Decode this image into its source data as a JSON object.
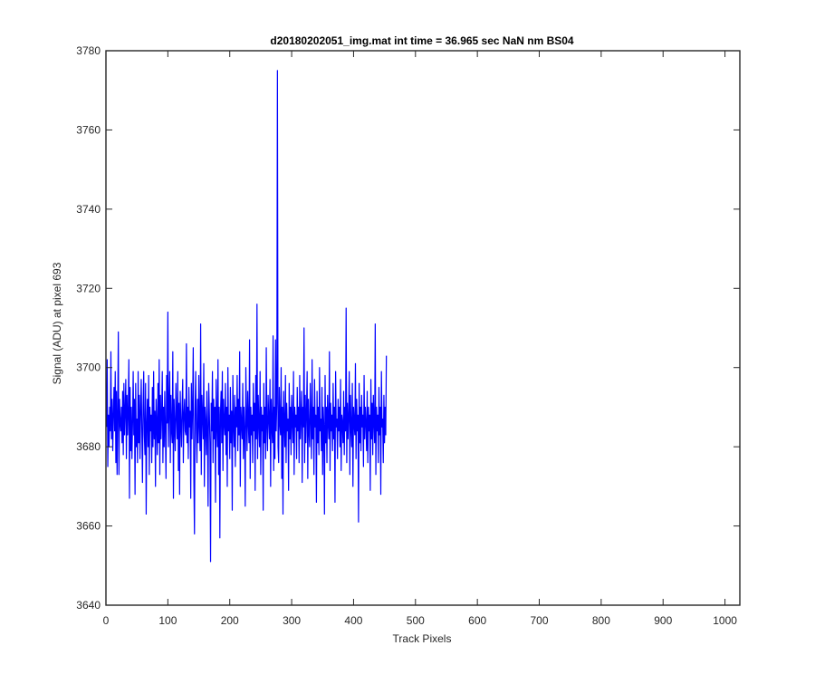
{
  "chart_data": {
    "type": "line",
    "title": "d20180202051_img.mat int time = 36.965 sec  NaN nm BS04",
    "xlabel": "Track Pixels",
    "ylabel": "Signal (ADU) at pixel 693",
    "xlim": [
      0,
      1024
    ],
    "ylim": [
      3640,
      3780
    ],
    "xticks": [
      0,
      100,
      200,
      300,
      400,
      500,
      600,
      700,
      800,
      900,
      1000
    ],
    "yticks": [
      3640,
      3660,
      3680,
      3700,
      3720,
      3740,
      3760,
      3780
    ],
    "grid": false,
    "legend": "none",
    "series_color": "#0000ff",
    "series": [
      {
        "x_start": 1,
        "x_step": 1,
        "values": [
          3685,
          3702,
          3675,
          3688,
          3680,
          3690,
          3684,
          3704,
          3682,
          3692,
          3679,
          3688,
          3695,
          3684,
          3699,
          3676,
          3694,
          3673,
          3689,
          3709,
          3673,
          3692,
          3686,
          3684,
          3690,
          3681,
          3694,
          3678,
          3696,
          3683,
          3689,
          3697,
          3677,
          3693,
          3683,
          3689,
          3702,
          3667,
          3695,
          3679,
          3690,
          3677,
          3686,
          3699,
          3683,
          3692,
          3668,
          3696,
          3680,
          3687,
          3676,
          3699,
          3681,
          3693,
          3677,
          3689,
          3697,
          3684,
          3671,
          3690,
          3699,
          3683,
          3678,
          3696,
          3663,
          3686,
          3692,
          3680,
          3698,
          3673,
          3690,
          3684,
          3688,
          3676,
          3695,
          3680,
          3699,
          3682,
          3689,
          3670,
          3692,
          3686,
          3678,
          3696,
          3681,
          3702,
          3673,
          3693,
          3682,
          3688,
          3699,
          3676,
          3690,
          3680,
          3694,
          3684,
          3672,
          3698,
          3686,
          3714,
          3680,
          3690,
          3699,
          3676,
          3693,
          3684,
          3681,
          3704,
          3667,
          3692,
          3685,
          3679,
          3696,
          3688,
          3682,
          3699,
          3674,
          3691,
          3668,
          3694,
          3686,
          3680,
          3690,
          3697,
          3676,
          3688,
          3692,
          3684,
          3683,
          3706,
          3681,
          3690,
          3677,
          3695,
          3685,
          3689,
          3667,
          3696,
          3682,
          3690,
          3705,
          3672,
          3658,
          3689,
          3699,
          3684,
          3676,
          3692,
          3681,
          3698,
          3685,
          3679,
          3711,
          3673,
          3693,
          3688,
          3682,
          3701,
          3670,
          3690,
          3686,
          3678,
          3694,
          3684,
          3665,
          3696,
          3689,
          3681,
          3651,
          3691,
          3684,
          3699,
          3676,
          3692,
          3682,
          3690,
          3666,
          3697,
          3686,
          3680,
          3702,
          3673,
          3690,
          3657,
          3688,
          3694,
          3681,
          3699,
          3674,
          3692,
          3686,
          3683,
          3696,
          3678,
          3690,
          3670,
          3700,
          3684,
          3688,
          3677,
          3695,
          3681,
          3689,
          3664,
          3698,
          3686,
          3680,
          3693,
          3675,
          3690,
          3685,
          3698,
          3679,
          3692,
          3683,
          3704,
          3670,
          3690,
          3686,
          3682,
          3696,
          3677,
          3690,
          3684,
          3665,
          3700,
          3688,
          3679,
          3694,
          3686,
          3681,
          3707,
          3672,
          3690,
          3683,
          3688,
          3676,
          3696,
          3684,
          3691,
          3669,
          3698,
          3682,
          3716,
          3677,
          3693,
          3686,
          3680,
          3699,
          3673,
          3690,
          3684,
          3688,
          3664,
          3696,
          3681,
          3690,
          3677,
          3705,
          3685,
          3679,
          3693,
          3687,
          3682,
          3697,
          3670,
          3692,
          3685,
          3681,
          3708,
          3674,
          3690,
          3677,
          3707,
          3684,
          3691,
          3775,
          3680,
          3676,
          3695,
          3686,
          3683,
          3700,
          3672,
          3690,
          3663,
          3694,
          3686,
          3680,
          3698,
          3676,
          3691,
          3684,
          3687,
          3669,
          3696,
          3682,
          3690,
          3678,
          3693,
          3686,
          3681,
          3699,
          3673,
          3690,
          3685,
          3688,
          3677,
          3695,
          3684,
          3690,
          3676,
          3698,
          3682,
          3688,
          3694,
          3671,
          3690,
          3685,
          3710,
          3676,
          3693,
          3681,
          3689,
          3699,
          3672,
          3692,
          3684,
          3680,
          3696,
          3687,
          3677,
          3702,
          3682,
          3690,
          3673,
          3697,
          3685,
          3688,
          3666,
          3694,
          3681,
          3690,
          3678,
          3700,
          3684,
          3687,
          3679,
          3695,
          3673,
          3690,
          3685,
          3663,
          3698,
          3681,
          3690,
          3676,
          3693,
          3686,
          3682,
          3704,
          3674,
          3691,
          3684,
          3688,
          3679,
          3696,
          3682,
          3690,
          3666,
          3699,
          3685,
          3687,
          3677,
          3692,
          3684,
          3690,
          3680,
          3697,
          3674,
          3688,
          3686,
          3681,
          3694,
          3678,
          3690,
          3684,
          3715,
          3676,
          3691,
          3682,
          3688,
          3699,
          3673,
          3693,
          3685,
          3680,
          3696,
          3670,
          3690,
          3686,
          3683,
          3701,
          3677,
          3692,
          3684,
          3688,
          3661,
          3696,
          3681,
          3690,
          3679,
          3693,
          3685,
          3688,
          3675,
          3698,
          3682,
          3690,
          3686,
          3679,
          3694,
          3676,
          3690,
          3684,
          3688,
          3669,
          3697,
          3682,
          3691,
          3678,
          3693,
          3686,
          3681,
          3711,
          3673,
          3690,
          3684,
          3688,
          3676,
          3695,
          3683,
          3690,
          3668,
          3699,
          3685,
          3687,
          3676,
          3693,
          3681,
          3690,
          3683,
          3703
        ]
      }
    ]
  }
}
